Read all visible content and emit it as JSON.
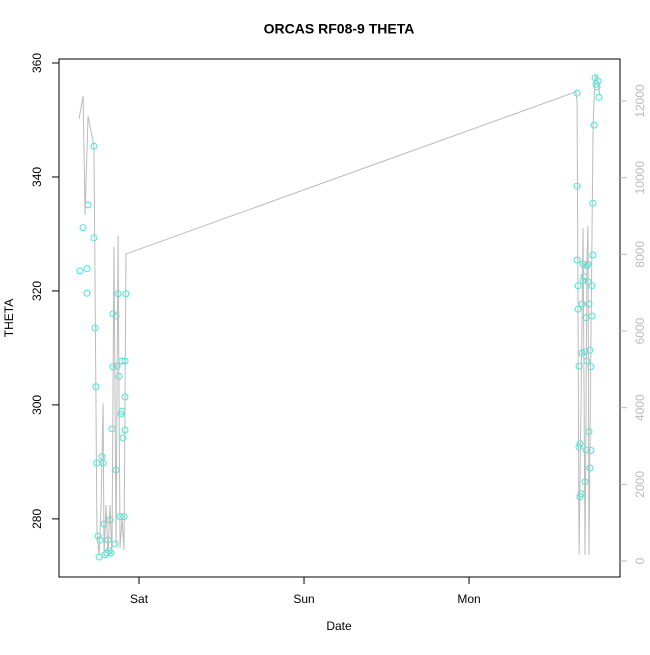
{
  "chart_data": {
    "type": "scatter",
    "title": "ORCAS RF08-9 THETA",
    "xlabel": "Date",
    "ylabel": "THETA",
    "xlim": [
      -0.485,
      2.915
    ],
    "ylim": [
      269.8,
      360.7
    ],
    "y2lim": [
      -417,
      13096
    ],
    "xticks": [
      {
        "value": 0,
        "label": "Sat"
      },
      {
        "value": 1,
        "label": "Sun"
      },
      {
        "value": 2,
        "label": "Mon"
      }
    ],
    "yticks": [
      280,
      300,
      320,
      340,
      360
    ],
    "y2ticks": [
      0,
      2000,
      4000,
      6000,
      8000,
      10000,
      12000
    ],
    "series": [
      {
        "type": "scatter",
        "color": "#33eedd",
        "x": [
          -0.358,
          -0.339,
          -0.309,
          -0.315,
          -0.315,
          -0.273,
          -0.273,
          -0.267,
          -0.261,
          -0.255,
          -0.248,
          -0.242,
          -0.236,
          -0.224,
          -0.218,
          -0.212,
          -0.206,
          -0.194,
          -0.188,
          -0.182,
          -0.176,
          -0.17,
          -0.164,
          -0.158,
          -0.158,
          -0.145,
          -0.139,
          -0.139,
          -0.133,
          -0.127,
          -0.121,
          -0.115,
          -0.109,
          -0.103,
          -0.103,
          -0.097,
          -0.091,
          -0.085,
          -0.085,
          -0.085,
          -0.079,
          2.655,
          2.655,
          2.655,
          2.661,
          2.661,
          2.667,
          2.667,
          2.673,
          2.673,
          2.679,
          2.685,
          2.685,
          2.691,
          2.691,
          2.697,
          2.703,
          2.703,
          2.709,
          2.709,
          2.715,
          2.715,
          2.721,
          2.721,
          2.727,
          2.727,
          2.733,
          2.733,
          2.739,
          2.739,
          2.745,
          2.745,
          2.751,
          2.751,
          2.758,
          2.764,
          2.77,
          2.776,
          2.782,
          2.788
        ],
        "values": [
          323.5,
          331.1,
          335.1,
          323.9,
          319.6,
          345.4,
          329.3,
          313.5,
          303.2,
          289.8,
          277.0,
          273.3,
          276.3,
          290.9,
          289.8,
          279.1,
          273.7,
          274.0,
          276.3,
          274.4,
          279.8,
          274.0,
          295.8,
          316.0,
          306.7,
          275.6,
          288.6,
          315.6,
          306.8,
          319.5,
          305.0,
          280.4,
          298.4,
          307.7,
          298.9,
          294.2,
          280.4,
          307.7,
          301.4,
          295.6,
          319.5,
          354.7,
          338.4,
          325.4,
          320.9,
          316.8,
          306.8,
          292.6,
          293.2,
          283.9,
          284.4,
          309.1,
          317.7,
          324.7,
          321.8,
          322.5,
          309.3,
          286.5,
          292.1,
          315.3,
          324.4,
          307.7,
          321.6,
          324.7,
          317.7,
          295.3,
          309.6,
          288.9,
          292.0,
          306.7,
          320.9,
          315.6,
          326.3,
          335.4,
          349.1,
          357.4,
          356.3,
          355.8,
          356.8,
          354.0
        ]
      },
      {
        "type": "line",
        "axis": "y2",
        "color": "#bbbbbb",
        "x": [
          -0.364,
          -0.339,
          -0.327,
          -0.309,
          -0.273,
          -0.267,
          -0.255,
          -0.242,
          -0.23,
          -0.218,
          -0.212,
          -0.2,
          -0.188,
          -0.176,
          -0.164,
          -0.152,
          -0.139,
          -0.127,
          -0.115,
          -0.103,
          -0.091,
          -0.079,
          2.648,
          2.655,
          2.667,
          2.679,
          2.691,
          2.703,
          2.715,
          2.721,
          2.727,
          2.739,
          2.752,
          2.764,
          2.776,
          2.794
        ],
        "values": [
          11530,
          12130,
          9030,
          11610,
          10830,
          7460,
          810,
          130,
          1460,
          4120,
          130,
          1460,
          130,
          1460,
          130,
          8190,
          420,
          8480,
          340,
          1120,
          290,
          8010,
          12240,
          11950,
          160,
          4200,
          8690,
          160,
          7800,
          8740,
          160,
          5770,
          11380,
          12650,
          12630,
          12130
        ]
      }
    ]
  }
}
